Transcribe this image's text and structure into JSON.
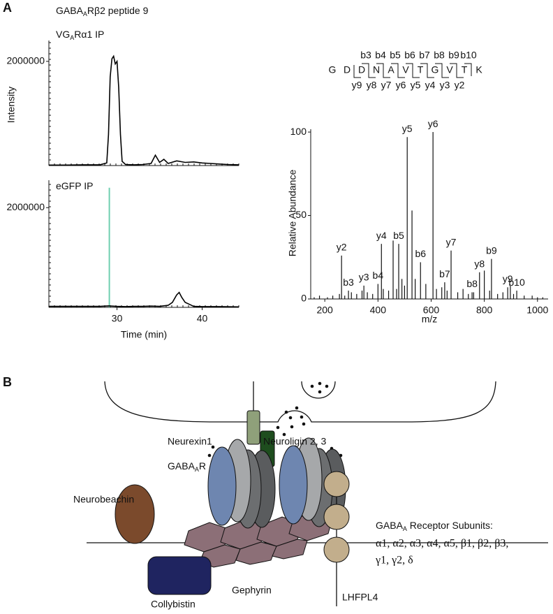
{
  "panel_a": {
    "label": "A",
    "header": [
      "GABA",
      "A",
      "Rβ2 peptide 9"
    ]
  },
  "chart_data": [
    {
      "type": "line",
      "title": [
        "VG",
        "A",
        "Rα1 IP"
      ],
      "y_label": "Intensity",
      "color": "#000000",
      "x": [
        22,
        24,
        26,
        28,
        28.8,
        29.0,
        29.2,
        29.4,
        29.6,
        29.8,
        30.0,
        30.2,
        30.4,
        30.6,
        31,
        32,
        33,
        34,
        34.5,
        35,
        35.5,
        36,
        37,
        38,
        39,
        40,
        41,
        42,
        43,
        44.3
      ],
      "series": [
        {
          "values": [
            10000,
            10000,
            15000,
            15000,
            50000,
            600000,
            1700000,
            2050000,
            2100000,
            1950000,
            2000000,
            1500000,
            600000,
            80000,
            20000,
            15000,
            20000,
            40000,
            200000,
            60000,
            120000,
            40000,
            90000,
            60000,
            70000,
            50000,
            40000,
            30000,
            20000,
            15000
          ]
        }
      ],
      "xlim": [
        22,
        44.3
      ],
      "ylim": [
        0,
        2400000
      ],
      "yticks": [
        2000000
      ]
    },
    {
      "type": "line",
      "title": [
        "eGFP IP"
      ],
      "x_label": "Time (min)",
      "color": "#000000",
      "x": [
        22,
        25,
        28,
        29,
        30,
        31,
        32,
        33,
        34,
        35,
        36,
        36.5,
        37,
        37.3,
        37.6,
        38,
        38.5,
        39,
        40,
        42,
        44.3
      ],
      "series": [
        {
          "values": [
            20000,
            20000,
            20000,
            30000,
            20000,
            15000,
            20000,
            20000,
            25000,
            20000,
            40000,
            100000,
            250000,
            300000,
            200000,
            100000,
            60000,
            20000,
            15000,
            15000,
            10000
          ]
        }
      ],
      "marker_line": {
        "x": 29.1,
        "value": 2400000,
        "color": "#6fcfb0"
      },
      "xlim": [
        22,
        44.3
      ],
      "ylim": [
        0,
        2550000
      ],
      "xticks": [
        30,
        40
      ],
      "yticks": [
        2000000
      ]
    },
    {
      "type": "stem",
      "x_label": "m/z",
      "y_label": "Relative Abundance",
      "color": "#000000",
      "ion_colors": {
        "b": "#2f56a3",
        "y": "#e0302a"
      },
      "sequence": [
        "G",
        "D",
        "D",
        "N",
        "A",
        "V",
        "T",
        "G",
        "V",
        "T",
        "K"
      ],
      "b_ions": [
        "b3",
        "b4",
        "b5",
        "b6",
        "b7",
        "b8",
        "b9",
        "b10"
      ],
      "y_ions": [
        "y9",
        "y8",
        "y7",
        "y6",
        "y5",
        "y4",
        "y3",
        "y2"
      ],
      "x": [
        263,
        289,
        347,
        400,
        413,
        478,
        510,
        560,
        607,
        651,
        675,
        754,
        782,
        827,
        888,
        922,
        160,
        180,
        210,
        230,
        255,
        275,
        300,
        320,
        340,
        360,
        380,
        420,
        440,
        457,
        470,
        490,
        500,
        528,
        540,
        580,
        620,
        640,
        660,
        700,
        720,
        740,
        760,
        800,
        820,
        850,
        870,
        898,
        910,
        950,
        980,
        1000,
        1020
      ],
      "values": [
        26,
        5,
        8,
        9,
        33,
        33,
        97,
        22,
        100,
        10,
        29,
        4,
        16,
        24,
        7,
        5,
        1,
        2,
        1,
        2,
        3,
        2,
        4,
        3,
        5,
        4,
        3,
        6,
        5,
        35,
        6,
        12,
        8,
        53,
        12,
        9,
        6,
        7,
        5,
        4,
        6,
        3,
        4,
        17,
        5,
        3,
        4,
        8,
        3,
        2,
        2,
        1,
        1
      ],
      "labels": [
        "y2",
        "b3",
        "y3",
        "b4",
        "y4",
        "b5",
        "y5",
        "b6",
        "y6",
        "b7",
        "y7",
        "b8",
        "y8",
        "b9",
        "y9",
        "b10",
        null,
        null,
        null,
        null,
        null,
        null,
        null,
        null,
        null,
        null,
        null,
        null,
        null,
        null,
        null,
        null,
        null,
        null,
        null,
        null,
        null,
        null,
        null,
        null,
        null,
        null,
        null,
        null,
        null,
        null,
        null,
        null,
        null,
        null,
        null,
        null,
        null
      ],
      "xlim": [
        147,
        1040
      ],
      "ylim": [
        0,
        101.7
      ],
      "xticks": [
        200,
        400,
        600,
        800,
        1000
      ],
      "yticks": [
        0,
        50,
        100
      ]
    }
  ],
  "panel_b": {
    "label": "B",
    "neurexin": "Neurexin1",
    "neuroligin": "Neuroligin 2, 3",
    "receptor": [
      "GABA",
      "A",
      "R"
    ],
    "neurobeachin": "Neurobeachin",
    "collybistin": "Collybistin",
    "gephyrin": "Gephyrin",
    "lhfpl4": "LHFPL4",
    "subunits_title": [
      "GABA",
      "A",
      " Receptor Subunits:"
    ],
    "subunits": [
      "α1, α2, α3, α4, α5, β1, β2, β3,",
      "γ1, γ2, δ"
    ]
  }
}
